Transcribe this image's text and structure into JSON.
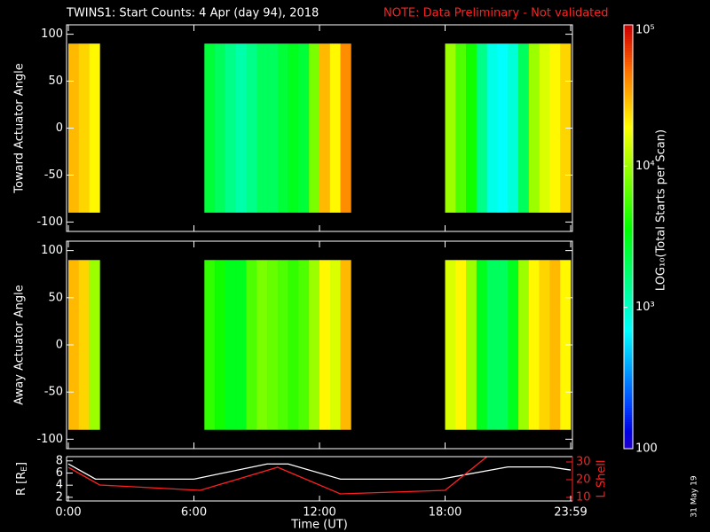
{
  "chart_data": [
    {
      "type": "heatmap",
      "title": "TWINS1: Start Counts:  4 Apr (day  94), 2018",
      "subtitle": "NOTE: Data Preliminary - Not validated",
      "ylabel": "Toward Actuator Angle",
      "xlim": [
        0,
        24
      ],
      "xticks": [
        0,
        6,
        12,
        18,
        24
      ],
      "ylim": [
        -110,
        110
      ],
      "yticks": [
        100,
        50,
        0,
        -50,
        -100
      ],
      "angle_range": [
        -90,
        90
      ],
      "x_bins": [
        0,
        0.5,
        1,
        1.5,
        2,
        2.5,
        3,
        3.5,
        4,
        4.5,
        5,
        5.5,
        6,
        6.5,
        7,
        7.5,
        8,
        8.5,
        9,
        9.5,
        10,
        10.5,
        11,
        11.5,
        12,
        12.5,
        13,
        13.5,
        14,
        14.5,
        15,
        15.5,
        16,
        16.5,
        17,
        17.5,
        18,
        18.5,
        19,
        19.5,
        20,
        20.5,
        21,
        21.5,
        22,
        22.5,
        23,
        23.5,
        24
      ],
      "values": [
        30000,
        25000,
        20000,
        null,
        null,
        null,
        null,
        null,
        null,
        null,
        null,
        null,
        null,
        2500,
        2000,
        1500,
        1200,
        1500,
        2000,
        2000,
        2500,
        3000,
        2500,
        8000,
        30000,
        20000,
        40000,
        null,
        null,
        null,
        null,
        null,
        null,
        null,
        null,
        null,
        10000,
        6000,
        4000,
        1500,
        800,
        700,
        900,
        2000,
        10000,
        15000,
        20000,
        25000
      ],
      "colorbar": {
        "label": "LOG₁₀(Total Starts per Scan)",
        "log": true,
        "lim": [
          100,
          100000
        ],
        "ticks": [
          100,
          {
            "value": 1000,
            "label": "10³"
          },
          {
            "value": 10000,
            "label": "10⁴"
          },
          {
            "value": 100000,
            "label": "10⁵"
          }
        ]
      }
    },
    {
      "type": "heatmap",
      "ylabel": "Away Actuator Angle",
      "xlim": [
        0,
        24
      ],
      "xticks": [
        0,
        6,
        12,
        18,
        24
      ],
      "ylim": [
        -110,
        110
      ],
      "yticks": [
        100,
        50,
        0,
        -50,
        -100
      ],
      "angle_range": [
        -90,
        90
      ],
      "x_bins": [
        0,
        0.5,
        1,
        1.5,
        2,
        2.5,
        3,
        3.5,
        4,
        4.5,
        5,
        5.5,
        6,
        6.5,
        7,
        7.5,
        8,
        8.5,
        9,
        9.5,
        10,
        10.5,
        11,
        11.5,
        12,
        12.5,
        13,
        13.5,
        14,
        14.5,
        15,
        15.5,
        16,
        16.5,
        17,
        17.5,
        18,
        18.5,
        19,
        19.5,
        20,
        20.5,
        21,
        21.5,
        22,
        22.5,
        23,
        23.5,
        24
      ],
      "values": [
        30000,
        25000,
        10000,
        null,
        null,
        null,
        null,
        null,
        null,
        null,
        null,
        null,
        null,
        5000,
        4000,
        3000,
        3000,
        6000,
        8000,
        7000,
        6000,
        5000,
        6000,
        10000,
        20000,
        15000,
        30000,
        null,
        null,
        null,
        null,
        null,
        null,
        null,
        null,
        null,
        15000,
        20000,
        10000,
        3000,
        2000,
        2000,
        3000,
        10000,
        20000,
        25000,
        30000,
        20000
      ]
    },
    {
      "type": "line",
      "xlabel": "Time (UT)",
      "ylabel": "R [R",
      "ylabel_sub": "E",
      "ylabel_end": "]",
      "y2label": "L Shell",
      "xlim": [
        0,
        24
      ],
      "xticks": [
        {
          "value": 0,
          "label": "0:00"
        },
        {
          "value": 6,
          "label": "6:00"
        },
        {
          "value": 12,
          "label": "12:00"
        },
        {
          "value": 18,
          "label": "18:00"
        },
        {
          "value": 24,
          "label": "23:59"
        }
      ],
      "ylim": [
        1.4,
        8.7
      ],
      "yticks": [
        2,
        4,
        6,
        8
      ],
      "y2lim": [
        8,
        33
      ],
      "y2ticks": [
        10,
        20,
        30
      ],
      "series": [
        {
          "name": "R",
          "color": "#ffffff",
          "x": [
            0,
            1.3,
            6,
            9.5,
            10.5,
            13,
            17.8,
            21,
            23,
            24
          ],
          "values": [
            7.5,
            5,
            5,
            7.5,
            7.5,
            5,
            5,
            7,
            7,
            6.5
          ]
        },
        {
          "name": "L Shell",
          "color": "#ff2020",
          "axis": "y2",
          "x": [
            0,
            1.5,
            6.3,
            10,
            13,
            18,
            20
          ],
          "values": [
            27,
            17,
            14,
            27,
            12,
            14,
            33
          ]
        }
      ]
    },
    {
      "type": "stamp",
      "text": "31 May 19"
    }
  ]
}
